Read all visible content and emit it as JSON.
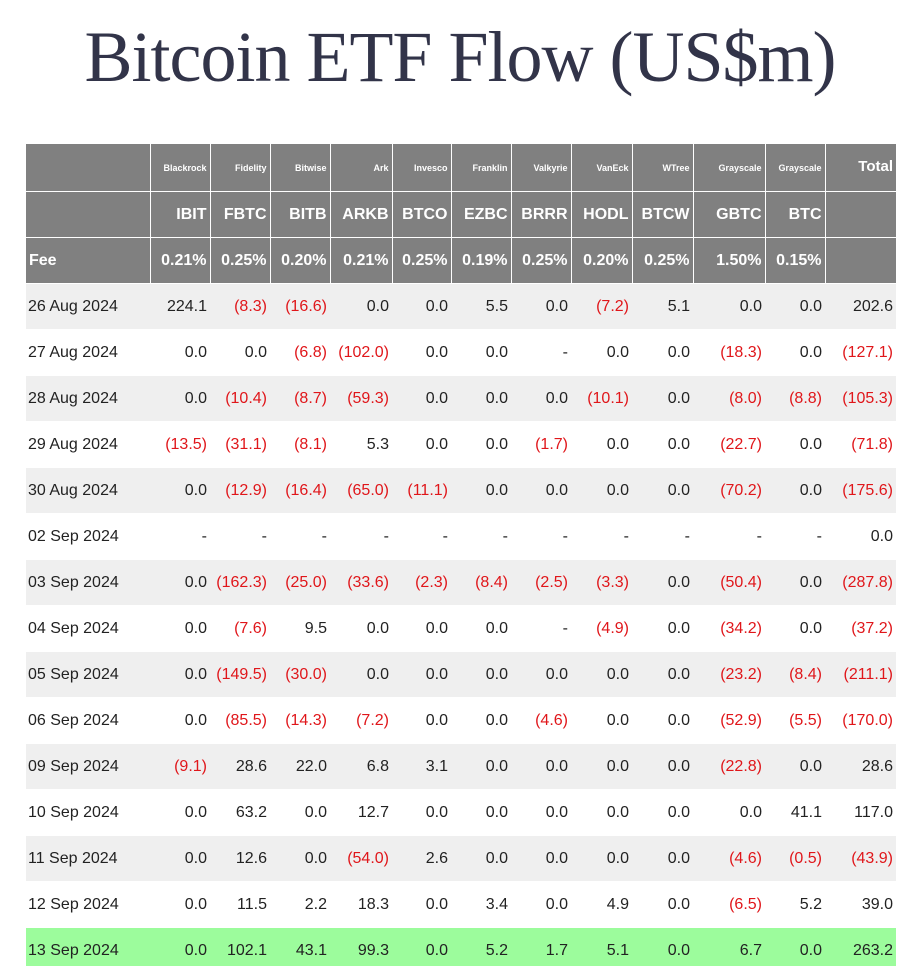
{
  "title": "Bitcoin ETF Flow (US$m)",
  "colors": {
    "header_bg": "#808080",
    "negative": "#e0161a",
    "highlight_row": "#9cfc9c",
    "title": "#323449"
  },
  "header": {
    "issuers": [
      "",
      "Blackrock",
      "Fidelity",
      "Bitwise",
      "Ark",
      "Invesco",
      "Franklin",
      "Valkyrie",
      "VanEck",
      "WTree",
      "Grayscale",
      "Grayscale",
      "Total"
    ],
    "tickers": [
      "",
      "IBIT",
      "FBTC",
      "BITB",
      "ARKB",
      "BTCO",
      "EZBC",
      "BRRR",
      "HODL",
      "BTCW",
      "GBTC",
      "BTC",
      ""
    ],
    "fees": [
      "Fee",
      "0.21%",
      "0.25%",
      "0.20%",
      "0.21%",
      "0.25%",
      "0.19%",
      "0.25%",
      "0.20%",
      "0.25%",
      "1.50%",
      "0.15%",
      ""
    ]
  },
  "rows": [
    {
      "date": "26 Aug 2024",
      "values": [
        "224.1",
        "(8.3)",
        "(16.6)",
        "0.0",
        "0.0",
        "5.5",
        "0.0",
        "(7.2)",
        "5.1",
        "0.0",
        "0.0",
        "202.6"
      ]
    },
    {
      "date": "27 Aug 2024",
      "values": [
        "0.0",
        "0.0",
        "(6.8)",
        "(102.0)",
        "0.0",
        "0.0",
        "-",
        "0.0",
        "0.0",
        "(18.3)",
        "0.0",
        "(127.1)"
      ]
    },
    {
      "date": "28 Aug 2024",
      "values": [
        "0.0",
        "(10.4)",
        "(8.7)",
        "(59.3)",
        "0.0",
        "0.0",
        "0.0",
        "(10.1)",
        "0.0",
        "(8.0)",
        "(8.8)",
        "(105.3)"
      ]
    },
    {
      "date": "29 Aug 2024",
      "values": [
        "(13.5)",
        "(31.1)",
        "(8.1)",
        "5.3",
        "0.0",
        "0.0",
        "(1.7)",
        "0.0",
        "0.0",
        "(22.7)",
        "0.0",
        "(71.8)"
      ]
    },
    {
      "date": "30 Aug 2024",
      "values": [
        "0.0",
        "(12.9)",
        "(16.4)",
        "(65.0)",
        "(11.1)",
        "0.0",
        "0.0",
        "0.0",
        "0.0",
        "(70.2)",
        "0.0",
        "(175.6)"
      ]
    },
    {
      "date": "02 Sep 2024",
      "values": [
        "-",
        "-",
        "-",
        "-",
        "-",
        "-",
        "-",
        "-",
        "-",
        "-",
        "-",
        "0.0"
      ]
    },
    {
      "date": "03 Sep 2024",
      "values": [
        "0.0",
        "(162.3)",
        "(25.0)",
        "(33.6)",
        "(2.3)",
        "(8.4)",
        "(2.5)",
        "(3.3)",
        "0.0",
        "(50.4)",
        "0.0",
        "(287.8)"
      ]
    },
    {
      "date": "04 Sep 2024",
      "values": [
        "0.0",
        "(7.6)",
        "9.5",
        "0.0",
        "0.0",
        "0.0",
        "-",
        "(4.9)",
        "0.0",
        "(34.2)",
        "0.0",
        "(37.2)"
      ]
    },
    {
      "date": "05 Sep 2024",
      "values": [
        "0.0",
        "(149.5)",
        "(30.0)",
        "0.0",
        "0.0",
        "0.0",
        "0.0",
        "0.0",
        "0.0",
        "(23.2)",
        "(8.4)",
        "(211.1)"
      ]
    },
    {
      "date": "06 Sep 2024",
      "values": [
        "0.0",
        "(85.5)",
        "(14.3)",
        "(7.2)",
        "0.0",
        "0.0",
        "(4.6)",
        "0.0",
        "0.0",
        "(52.9)",
        "(5.5)",
        "(170.0)"
      ]
    },
    {
      "date": "09 Sep 2024",
      "values": [
        "(9.1)",
        "28.6",
        "22.0",
        "6.8",
        "3.1",
        "0.0",
        "0.0",
        "0.0",
        "0.0",
        "(22.8)",
        "0.0",
        "28.6"
      ]
    },
    {
      "date": "10 Sep 2024",
      "values": [
        "0.0",
        "63.2",
        "0.0",
        "12.7",
        "0.0",
        "0.0",
        "0.0",
        "0.0",
        "0.0",
        "0.0",
        "41.1",
        "117.0"
      ]
    },
    {
      "date": "11 Sep 2024",
      "values": [
        "0.0",
        "12.6",
        "0.0",
        "(54.0)",
        "2.6",
        "0.0",
        "0.0",
        "0.0",
        "0.0",
        "(4.6)",
        "(0.5)",
        "(43.9)"
      ]
    },
    {
      "date": "12 Sep 2024",
      "values": [
        "0.0",
        "11.5",
        "2.2",
        "18.3",
        "0.0",
        "3.4",
        "0.0",
        "4.9",
        "0.0",
        "(6.5)",
        "5.2",
        "39.0"
      ]
    },
    {
      "date": "13 Sep 2024",
      "values": [
        "0.0",
        "102.1",
        "43.1",
        "99.3",
        "0.0",
        "5.2",
        "1.7",
        "5.1",
        "0.0",
        "6.7",
        "0.0",
        "263.2"
      ],
      "highlighted": true
    }
  ]
}
